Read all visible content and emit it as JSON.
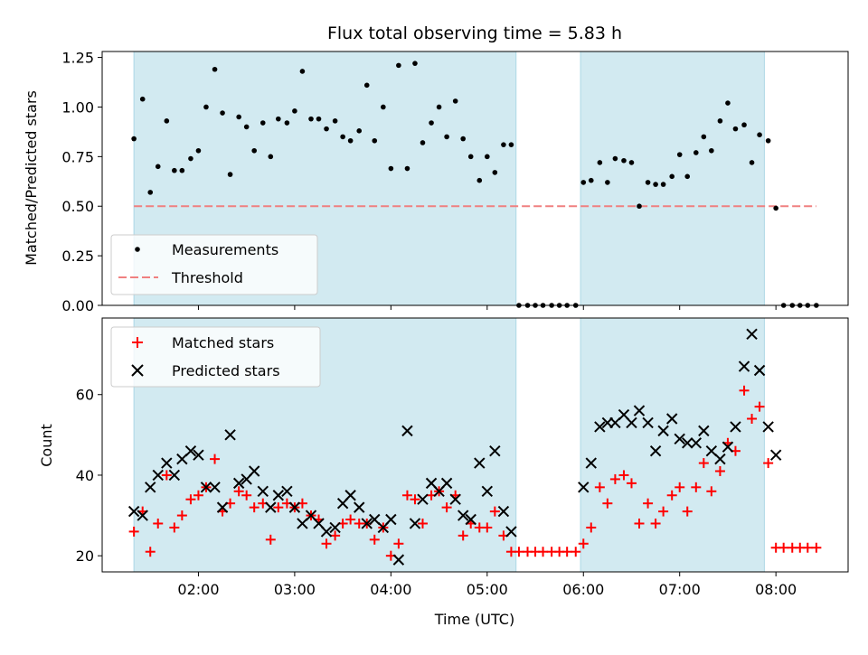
{
  "title": "Flux total observing time = 5.83 h",
  "colors": {
    "band": "#add8e6",
    "measurement": "#000000",
    "threshold": "#f08080",
    "matched": "#ff0000",
    "predicted": "#000000",
    "axis": "#000000"
  },
  "chart_data": [
    {
      "type": "scatter",
      "ylabel": "Matched/Predicted stars",
      "xlabel": "",
      "ylim": [
        0.0,
        1.28
      ],
      "yticks": [
        "0.00",
        "0.25",
        "0.50",
        "0.75",
        "1.00",
        "1.25"
      ],
      "ytick_values": [
        0.0,
        0.25,
        0.5,
        0.75,
        1.0,
        1.25
      ],
      "x_is_time_hours_utc": true,
      "xlim": [
        1.0,
        8.75
      ],
      "shaded_intervals": [
        [
          1.33,
          5.3
        ],
        [
          5.97,
          7.88
        ]
      ],
      "legend": {
        "position": "lower-left",
        "entries": [
          "Measurements",
          "Threshold"
        ]
      },
      "series": [
        {
          "name": "Measurements",
          "marker": "dot",
          "x": [
            1.33,
            1.42,
            1.5,
            1.58,
            1.67,
            1.75,
            1.83,
            1.92,
            2.0,
            2.08,
            2.17,
            2.25,
            2.33,
            2.42,
            2.5,
            2.58,
            2.67,
            2.75,
            2.83,
            2.92,
            3.0,
            3.08,
            3.17,
            3.25,
            3.33,
            3.42,
            3.5,
            3.58,
            3.67,
            3.75,
            3.83,
            3.92,
            4.0,
            4.08,
            4.17,
            4.25,
            4.33,
            4.42,
            4.5,
            4.58,
            4.67,
            4.75,
            4.83,
            4.92,
            5.0,
            5.08,
            5.17,
            5.25,
            5.33,
            5.42,
            5.5,
            5.58,
            5.67,
            5.75,
            5.83,
            5.92,
            6.0,
            6.08,
            6.17,
            6.25,
            6.33,
            6.42,
            6.5,
            6.58,
            6.67,
            6.75,
            6.83,
            6.92,
            7.0,
            7.08,
            7.17,
            7.25,
            7.33,
            7.42,
            7.5,
            7.58,
            7.67,
            7.75,
            7.83,
            7.92,
            8.0,
            8.08,
            8.17,
            8.25,
            8.33,
            8.42
          ],
          "y": [
            0.84,
            1.04,
            0.57,
            0.7,
            0.93,
            0.68,
            0.68,
            0.74,
            0.78,
            1.0,
            1.19,
            0.97,
            0.66,
            0.95,
            0.9,
            0.78,
            0.92,
            0.75,
            0.94,
            0.92,
            0.98,
            1.18,
            0.94,
            0.94,
            0.89,
            0.93,
            0.85,
            0.83,
            0.88,
            1.11,
            0.83,
            1.0,
            0.69,
            1.21,
            0.69,
            1.22,
            0.82,
            0.92,
            1.0,
            0.85,
            1.03,
            0.84,
            0.75,
            0.63,
            0.75,
            0.67,
            0.81,
            0.81,
            0.0,
            0.0,
            0.0,
            0.0,
            0.0,
            0.0,
            0.0,
            0.0,
            0.62,
            0.63,
            0.72,
            0.62,
            0.74,
            0.73,
            0.72,
            0.5,
            0.62,
            0.61,
            0.61,
            0.65,
            0.76,
            0.65,
            0.77,
            0.85,
            0.78,
            0.93,
            1.02,
            0.89,
            0.91,
            0.72,
            0.86,
            0.83,
            0.49,
            0.0,
            0.0,
            0.0,
            0.0,
            0.0
          ]
        },
        {
          "name": "Threshold",
          "marker": "dashed-line",
          "x": [
            1.33,
            8.42
          ],
          "y": [
            0.5,
            0.5
          ]
        }
      ]
    },
    {
      "type": "scatter",
      "ylabel": "Count",
      "xlabel": "Time (UTC)",
      "ylim": [
        16,
        79
      ],
      "yticks": [
        "20",
        "40",
        "60"
      ],
      "ytick_values": [
        20,
        40,
        60
      ],
      "x_is_time_hours_utc": true,
      "xlim": [
        1.0,
        8.75
      ],
      "xticks": [
        "02:00",
        "03:00",
        "04:00",
        "05:00",
        "06:00",
        "07:00",
        "08:00"
      ],
      "xtick_values": [
        2,
        3,
        4,
        5,
        6,
        7,
        8
      ],
      "shaded_intervals": [
        [
          1.33,
          5.3
        ],
        [
          5.97,
          7.88
        ]
      ],
      "legend": {
        "position": "upper-left",
        "entries": [
          "Matched stars",
          "Predicted stars"
        ]
      },
      "series": [
        {
          "name": "Matched stars",
          "marker": "plus",
          "x": [
            1.33,
            1.42,
            1.5,
            1.58,
            1.67,
            1.75,
            1.83,
            1.92,
            2.0,
            2.08,
            2.17,
            2.25,
            2.33,
            2.42,
            2.5,
            2.58,
            2.67,
            2.75,
            2.83,
            2.92,
            3.0,
            3.08,
            3.17,
            3.25,
            3.33,
            3.42,
            3.5,
            3.58,
            3.67,
            3.75,
            3.83,
            3.92,
            4.0,
            4.08,
            4.17,
            4.25,
            4.33,
            4.42,
            4.5,
            4.58,
            4.67,
            4.75,
            4.83,
            4.92,
            5.0,
            5.08,
            5.17,
            5.25,
            5.33,
            5.42,
            5.5,
            5.58,
            5.67,
            5.75,
            5.83,
            5.92,
            6.0,
            6.08,
            6.17,
            6.25,
            6.33,
            6.42,
            6.5,
            6.58,
            6.67,
            6.75,
            6.83,
            6.92,
            7.0,
            7.08,
            7.17,
            7.25,
            7.33,
            7.42,
            7.5,
            7.58,
            7.67,
            7.75,
            7.83,
            7.92,
            8.0,
            8.08,
            8.17,
            8.25,
            8.33,
            8.42
          ],
          "y": [
            26,
            31,
            21,
            28,
            40,
            27,
            30,
            34,
            35,
            37,
            44,
            31,
            33,
            36,
            35,
            32,
            33,
            24,
            32,
            33,
            32,
            33,
            30,
            29,
            23,
            25,
            28,
            29,
            28,
            28,
            24,
            27,
            20,
            23,
            35,
            34,
            28,
            35,
            36,
            32,
            35,
            25,
            28,
            27,
            27,
            31,
            25,
            21,
            21,
            21,
            21,
            21,
            21,
            21,
            21,
            21,
            23,
            27,
            37,
            33,
            39,
            40,
            38,
            28,
            33,
            28,
            31,
            35,
            37,
            31,
            37,
            43,
            36,
            41,
            48,
            46,
            61,
            54,
            57,
            43,
            22,
            22,
            22,
            22,
            22,
            22
          ]
        },
        {
          "name": "Predicted stars",
          "marker": "x",
          "x": [
            1.33,
            1.42,
            1.5,
            1.58,
            1.67,
            1.75,
            1.83,
            1.92,
            2.0,
            2.08,
            2.17,
            2.25,
            2.33,
            2.42,
            2.5,
            2.58,
            2.67,
            2.75,
            2.83,
            2.92,
            3.0,
            3.08,
            3.17,
            3.25,
            3.33,
            3.42,
            3.5,
            3.58,
            3.67,
            3.75,
            3.83,
            3.92,
            4.0,
            4.08,
            4.17,
            4.25,
            4.33,
            4.42,
            4.5,
            4.58,
            4.67,
            4.75,
            4.83,
            4.92,
            5.0,
            5.08,
            5.17,
            5.25,
            6.0,
            6.08,
            6.17,
            6.25,
            6.33,
            6.42,
            6.5,
            6.58,
            6.67,
            6.75,
            6.83,
            6.92,
            7.0,
            7.08,
            7.17,
            7.25,
            7.33,
            7.42,
            7.5,
            7.58,
            7.67,
            7.75,
            7.83,
            7.92,
            8.0
          ],
          "y": [
            31,
            30,
            37,
            40,
            43,
            40,
            44,
            46,
            45,
            37,
            37,
            32,
            50,
            38,
            39,
            41,
            36,
            32,
            35,
            36,
            32,
            28,
            30,
            28,
            26,
            27,
            33,
            35,
            32,
            28,
            29,
            27,
            29,
            19,
            51,
            28,
            34,
            38,
            36,
            38,
            34,
            30,
            29,
            43,
            36,
            46,
            31,
            26,
            37,
            43,
            52,
            53,
            53,
            55,
            53,
            56,
            53,
            46,
            51,
            54,
            49,
            48,
            48,
            51,
            46,
            44,
            47,
            52,
            67,
            75,
            66,
            52,
            45
          ]
        }
      ]
    }
  ]
}
